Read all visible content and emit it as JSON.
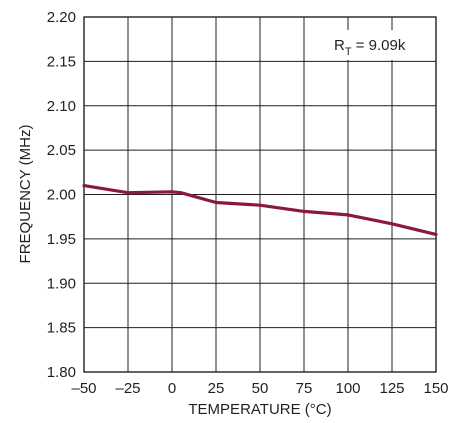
{
  "chart_data": {
    "type": "line",
    "title": "",
    "xlabel": "TEMPERATURE (°C)",
    "ylabel": "FREQUENCY (MHz)",
    "xlim": [
      -50,
      150
    ],
    "ylim": [
      1.8,
      2.2
    ],
    "x_ticks": [
      -50,
      -25,
      0,
      25,
      50,
      75,
      100,
      125,
      150
    ],
    "y_ticks": [
      1.8,
      1.85,
      1.9,
      1.95,
      2.0,
      2.05,
      2.1,
      2.15,
      2.2
    ],
    "x_tick_labels": [
      "–50",
      "–25",
      "0",
      "25",
      "50",
      "75",
      "100",
      "125",
      "150"
    ],
    "y_tick_labels": [
      "1.80",
      "1.85",
      "1.90",
      "1.95",
      "2.00",
      "2.05",
      "2.10",
      "2.15",
      "2.20"
    ],
    "grid": true,
    "series": [
      {
        "color": "#8b1a3a",
        "x": [
          -50,
          -25,
          0,
          5,
          25,
          50,
          75,
          100,
          125,
          150
        ],
        "y": [
          2.01,
          2.002,
          2.003,
          2.002,
          1.991,
          1.988,
          1.981,
          1.977,
          1.967,
          1.955
        ]
      }
    ],
    "annotation": {
      "main": "R",
      "sub": "T",
      "value": " = 9.09k"
    }
  }
}
